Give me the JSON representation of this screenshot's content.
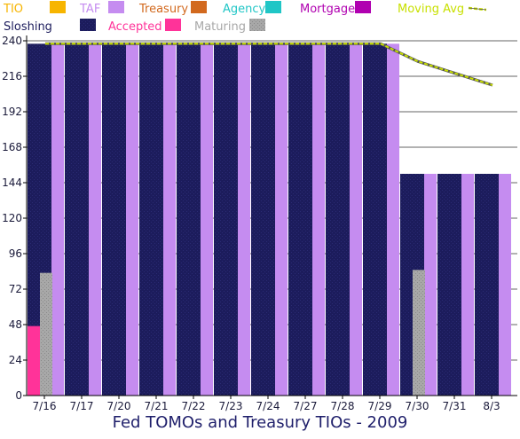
{
  "chart_data": {
    "type": "bar",
    "title": "Fed TOMOs and Treasury TIOs - 2009",
    "categories": [
      "7/16",
      "7/17",
      "7/20",
      "7/21",
      "7/22",
      "7/23",
      "7/24",
      "7/27",
      "7/28",
      "7/29",
      "7/30",
      "7/31",
      "8/3"
    ],
    "ylim": [
      0,
      240
    ],
    "yticks": [
      0,
      24,
      48,
      72,
      96,
      120,
      144,
      168,
      192,
      216,
      240
    ],
    "grid": true,
    "legend_position": "top",
    "legend": [
      {
        "name": "TIO",
        "color": "#f7b500"
      },
      {
        "name": "TAF",
        "color": "#c58cf0"
      },
      {
        "name": "Treasury",
        "color": "#d2691e"
      },
      {
        "name": "Agency",
        "color": "#20c6c6"
      },
      {
        "name": "Mortgage",
        "color": "#b000b0"
      },
      {
        "name": "Moving Avg",
        "color": "#c8e000"
      },
      {
        "name": "Sloshing",
        "color": "#1c1c5c"
      },
      {
        "name": "Accepted",
        "color": "#ff3399"
      },
      {
        "name": "Maturing",
        "color": "#a8a8a8"
      }
    ],
    "series": [
      {
        "name": "Sloshing",
        "values": [
          238,
          238,
          238,
          238,
          238,
          238,
          238,
          238,
          238,
          238,
          150,
          150,
          150
        ]
      },
      {
        "name": "TAF",
        "values": [
          238,
          238,
          238,
          238,
          238,
          238,
          238,
          238,
          238,
          238,
          150,
          150,
          150
        ]
      },
      {
        "name": "Accepted",
        "values": [
          47,
          0,
          0,
          0,
          0,
          0,
          0,
          0,
          0,
          0,
          0,
          0,
          0
        ]
      },
      {
        "name": "Maturing",
        "values": [
          83,
          0,
          0,
          0,
          0,
          0,
          0,
          0,
          0,
          0,
          85,
          0,
          0
        ]
      },
      {
        "name": "Moving Avg",
        "values": [
          238,
          238,
          238,
          238,
          238,
          238,
          238,
          238,
          238,
          238,
          226,
          218,
          210
        ]
      }
    ]
  }
}
